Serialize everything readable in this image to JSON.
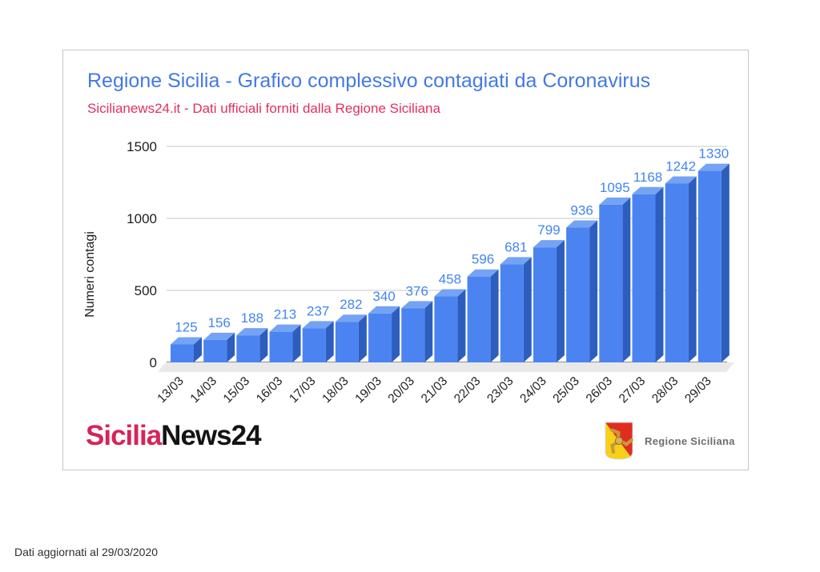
{
  "page": {
    "background": "#ffffff",
    "footer_note": "Dati aggiornati al 29/03/2020"
  },
  "header": {
    "title": "Regione Sicilia - Grafico complessivo contagiati da Coronavirus",
    "subtitle": "Sicilianews24.it - Dati ufficiali forniti dalla Regione Siciliana",
    "title_color": "#4379e4",
    "subtitle_color": "#e23062"
  },
  "chart_data": {
    "type": "bar",
    "style": "3d-column",
    "title": "Regione Sicilia - Grafico complessivo contagiati da Coronavirus",
    "categories": [
      "13/03",
      "14/03",
      "15/03",
      "16/03",
      "17/03",
      "18/03",
      "19/03",
      "20/03",
      "21/03",
      "22/03",
      "23/03",
      "24/03",
      "25/03",
      "26/03",
      "27/03",
      "28/03",
      "29/03"
    ],
    "values": [
      125,
      156,
      188,
      213,
      237,
      282,
      340,
      376,
      458,
      596,
      681,
      799,
      936,
      1095,
      1168,
      1242,
      1330
    ],
    "xlabel": "",
    "ylabel": "Numeri contagi",
    "ylim": [
      0,
      1500
    ],
    "yticks": [
      0,
      500,
      1000,
      1500
    ],
    "grid": true,
    "legend": "none",
    "colors": {
      "bar_front": "#4b84f1",
      "bar_top": "#74a3f4",
      "bar_side": "#2d5dbd",
      "value_label": "#4285f4",
      "grid_line": "#dcdcdc",
      "axis_line": "#4a4a4a",
      "tick_text": "#212121",
      "category_text": "#1f1f1f",
      "floor": "#e9e9e9",
      "ylabel_color": "#1a1a1a"
    }
  },
  "branding": {
    "logo_part1": "Sicilia",
    "logo_part2": "News24",
    "logo_part1_color": "#d6245a",
    "logo_part2_color": "#141414",
    "region_label": "Regione Siciliana",
    "region_label_color": "#6e6e6e",
    "shield_red": "#e02d22",
    "shield_yellow": "#f7d117"
  }
}
